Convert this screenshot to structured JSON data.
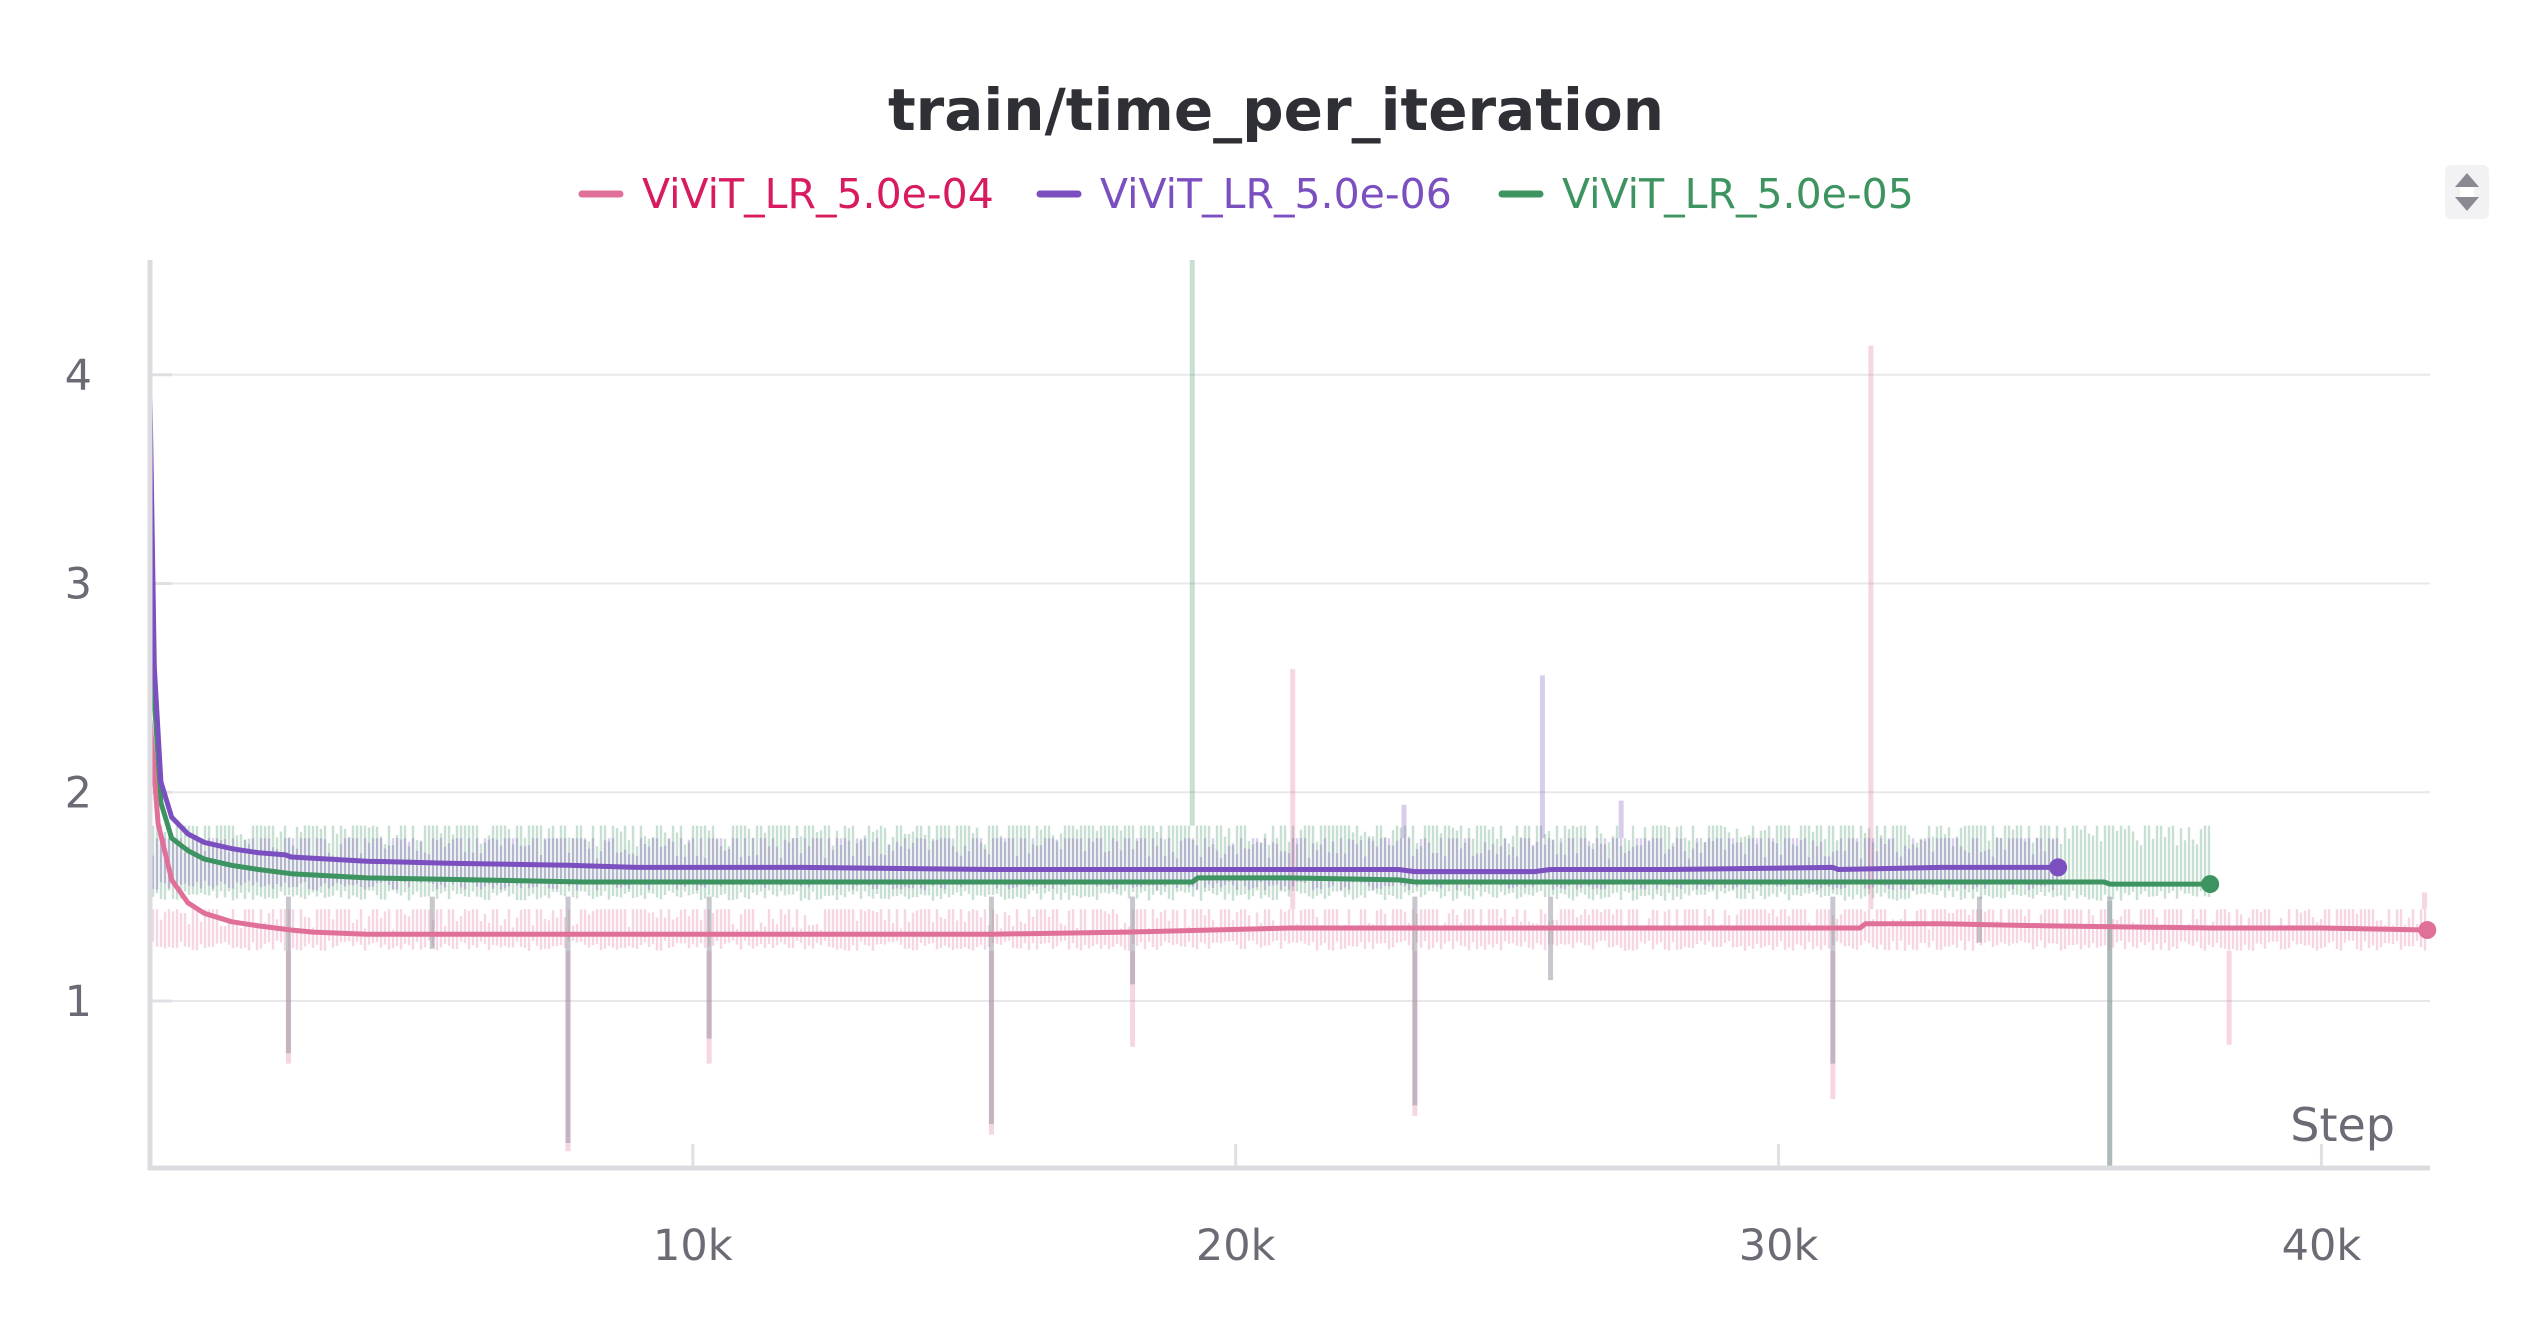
{
  "chart_data": {
    "type": "line",
    "title": "train/time_per_iteration",
    "xlabel": "Step",
    "ylabel": "",
    "xlim": [
      0,
      42000
    ],
    "ylim": [
      0.2,
      4.55
    ],
    "x_ticks": [
      10000,
      20000,
      30000,
      40000
    ],
    "x_tick_labels": [
      "10k",
      "20k",
      "30k",
      "40k"
    ],
    "y_ticks": [
      1,
      2,
      3,
      4
    ],
    "y_tick_labels": [
      "1",
      "2",
      "3",
      "4"
    ],
    "grid": true,
    "legend_position": "top",
    "series": [
      {
        "name": "ViViT_LR_5.0e-04",
        "color": "#e0709a",
        "legend_text_color": "#d81b60",
        "last_point": {
          "x": 41950,
          "y": 1.34
        },
        "smoothed": {
          "x": [
            0,
            150,
            400,
            700,
            1000,
            1500,
            2000,
            2600,
            3000,
            4000,
            6000,
            8000,
            10000,
            12000,
            15500,
            18000,
            21000,
            23000,
            25000,
            27000,
            29000,
            31500,
            31600,
            33000,
            35000,
            38000,
            40000,
            41950
          ],
          "y": [
            2.35,
            1.85,
            1.58,
            1.47,
            1.42,
            1.38,
            1.36,
            1.34,
            1.33,
            1.32,
            1.32,
            1.32,
            1.32,
            1.32,
            1.32,
            1.33,
            1.35,
            1.35,
            1.35,
            1.35,
            1.35,
            1.35,
            1.37,
            1.37,
            1.36,
            1.35,
            1.35,
            1.34
          ]
        },
        "raw_band": {
          "low": 1.24,
          "high": 1.44,
          "x_end": 41950
        },
        "raw_spikes": [
          {
            "x": 21050,
            "y": 2.59
          },
          {
            "x": 31700,
            "y": 4.14
          },
          {
            "x": 41900,
            "y": 1.52
          }
        ],
        "raw_dips": [
          {
            "x": 2550,
            "y": 0.7
          },
          {
            "x": 7700,
            "y": 0.28
          },
          {
            "x": 10300,
            "y": 0.7
          },
          {
            "x": 15500,
            "y": 0.36
          },
          {
            "x": 18100,
            "y": 0.78
          },
          {
            "x": 23300,
            "y": 0.45
          },
          {
            "x": 31000,
            "y": 0.53
          },
          {
            "x": 38300,
            "y": 0.79
          }
        ]
      },
      {
        "name": "ViViT_LR_5.0e-06",
        "color": "#7b4fbf",
        "legend_text_color": "#7b4fbf",
        "last_point": {
          "x": 35150,
          "y": 1.64
        },
        "smoothed": {
          "x": [
            0,
            80,
            200,
            400,
            700,
            1000,
            1500,
            2000,
            2500,
            2600,
            4000,
            5500,
            7700,
            9000,
            12000,
            15500,
            18000,
            19000,
            21000,
            23000,
            23300,
            25500,
            25800,
            28000,
            31000,
            31100,
            33000,
            35150
          ],
          "y": [
            3.9,
            2.6,
            2.05,
            1.88,
            1.8,
            1.76,
            1.73,
            1.71,
            1.7,
            1.69,
            1.67,
            1.66,
            1.65,
            1.64,
            1.64,
            1.63,
            1.63,
            1.63,
            1.63,
            1.63,
            1.62,
            1.62,
            1.63,
            1.63,
            1.64,
            1.63,
            1.64,
            1.64
          ]
        },
        "raw_band": {
          "low": 1.53,
          "high": 1.78,
          "x_end": 35150
        },
        "raw_spikes": [
          {
            "x": 23100,
            "y": 1.94
          },
          {
            "x": 25650,
            "y": 2.56
          },
          {
            "x": 27100,
            "y": 1.96
          }
        ],
        "raw_dips": []
      },
      {
        "name": "ViViT_LR_5.0e-05",
        "color": "#3d9460",
        "legend_text_color": "#3d9460",
        "last_point": {
          "x": 37950,
          "y": 1.56
        },
        "smoothed": {
          "x": [
            0,
            80,
            200,
            400,
            700,
            1000,
            1500,
            2000,
            2600,
            4000,
            6000,
            8000,
            10000,
            12000,
            15500,
            18000,
            19200,
            19300,
            21000,
            23000,
            23300,
            25000,
            28000,
            31000,
            33000,
            35000,
            36000,
            36100,
            37950
          ],
          "y": [
            3.8,
            2.45,
            1.95,
            1.78,
            1.72,
            1.68,
            1.65,
            1.63,
            1.61,
            1.59,
            1.58,
            1.57,
            1.57,
            1.57,
            1.57,
            1.57,
            1.57,
            1.59,
            1.59,
            1.58,
            1.57,
            1.57,
            1.57,
            1.57,
            1.57,
            1.57,
            1.57,
            1.56,
            1.56
          ]
        },
        "raw_band": {
          "low": 1.48,
          "high": 1.84,
          "x_end": 37950
        },
        "raw_spikes": [
          {
            "x": 19200,
            "y": 4.55
          }
        ],
        "raw_dips": [
          {
            "x": 36100,
            "y": 0.2
          }
        ]
      }
    ]
  },
  "icons": {
    "expand_toggle": "expand-collapse-icon"
  }
}
